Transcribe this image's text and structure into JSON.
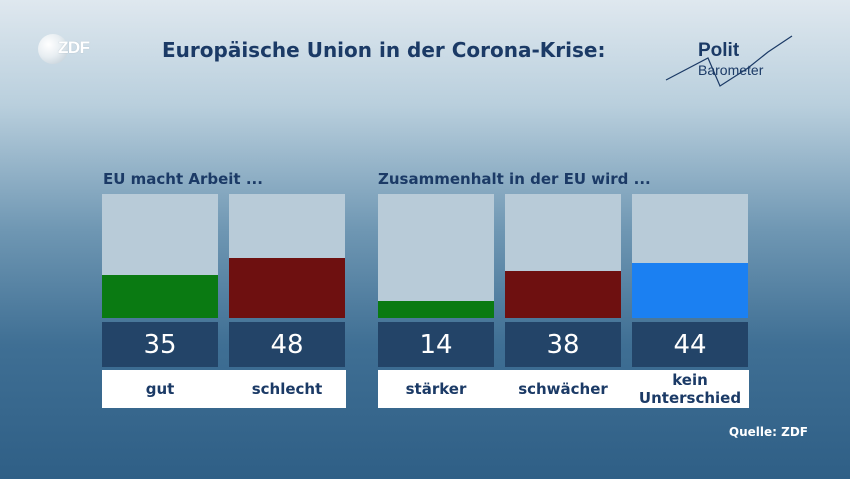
{
  "header": {
    "logo_text": "ZDF",
    "title": "Europäische Union in der Corona-Krise:",
    "brand_top": "Polit",
    "brand_bottom": "Barometer"
  },
  "chart_data": {
    "type": "bar",
    "title": "Europäische Union in der Corona-Krise:",
    "ylim": [
      0,
      100
    ],
    "unit": "",
    "groups": [
      {
        "label": "EU macht Arbeit ...",
        "categories": [
          "gut",
          "schlecht"
        ],
        "values": [
          35,
          48
        ],
        "colors": [
          "#0a7a12",
          "#6e1010"
        ]
      },
      {
        "label": "Zusammenhalt in der EU wird ...",
        "categories": [
          "stärker",
          "schwächer",
          "kein Unterschied"
        ],
        "values": [
          14,
          38,
          44
        ],
        "colors": [
          "#0a7a12",
          "#6e1010",
          "#1b80f2"
        ]
      }
    ],
    "bar_background": "#b8cbd8"
  },
  "footer": {
    "source": "Quelle: ZDF"
  }
}
